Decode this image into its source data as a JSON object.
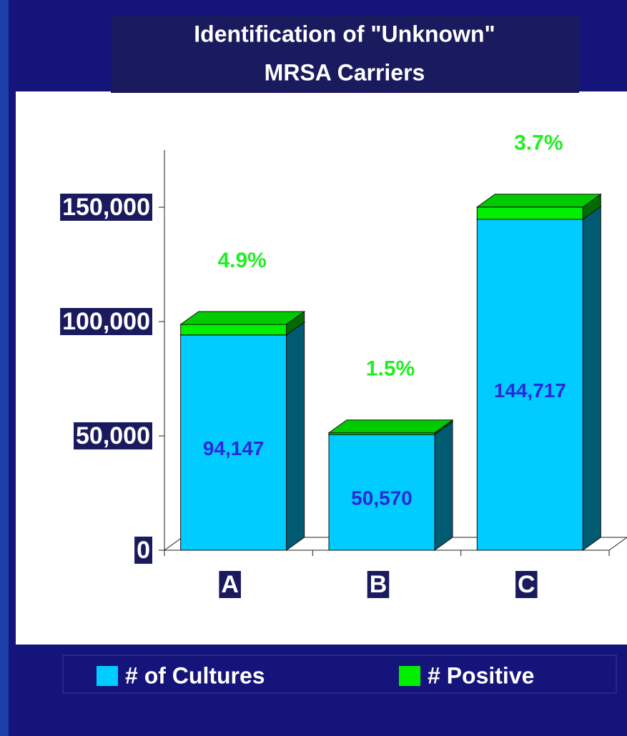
{
  "chart_data": {
    "type": "bar3d_stacked",
    "title": "Identification of \"Unknown\"",
    "subtitle": "MRSA Carriers",
    "categories": [
      "A",
      "B",
      "C"
    ],
    "series": [
      {
        "name": "# of Cultures",
        "color": "#00ccff",
        "values": [
          94147,
          50570,
          144717
        ],
        "value_labels": [
          "94,147",
          "50,570",
          "144,717"
        ]
      },
      {
        "name": "# Positive",
        "color": "#00ee00",
        "values": [
          4613,
          759,
          5355
        ]
      }
    ],
    "annotations": [
      "4.9%",
      "1.5%",
      "3.7%"
    ],
    "ylim": [
      0,
      175000
    ],
    "yticks": [
      0,
      {
        "value": 50000,
        "label": "50,000"
      },
      {
        "value": 100000,
        "label": "100,000"
      },
      {
        "value": 150000,
        "label": "150,000"
      }
    ],
    "legend": "bottom"
  }
}
